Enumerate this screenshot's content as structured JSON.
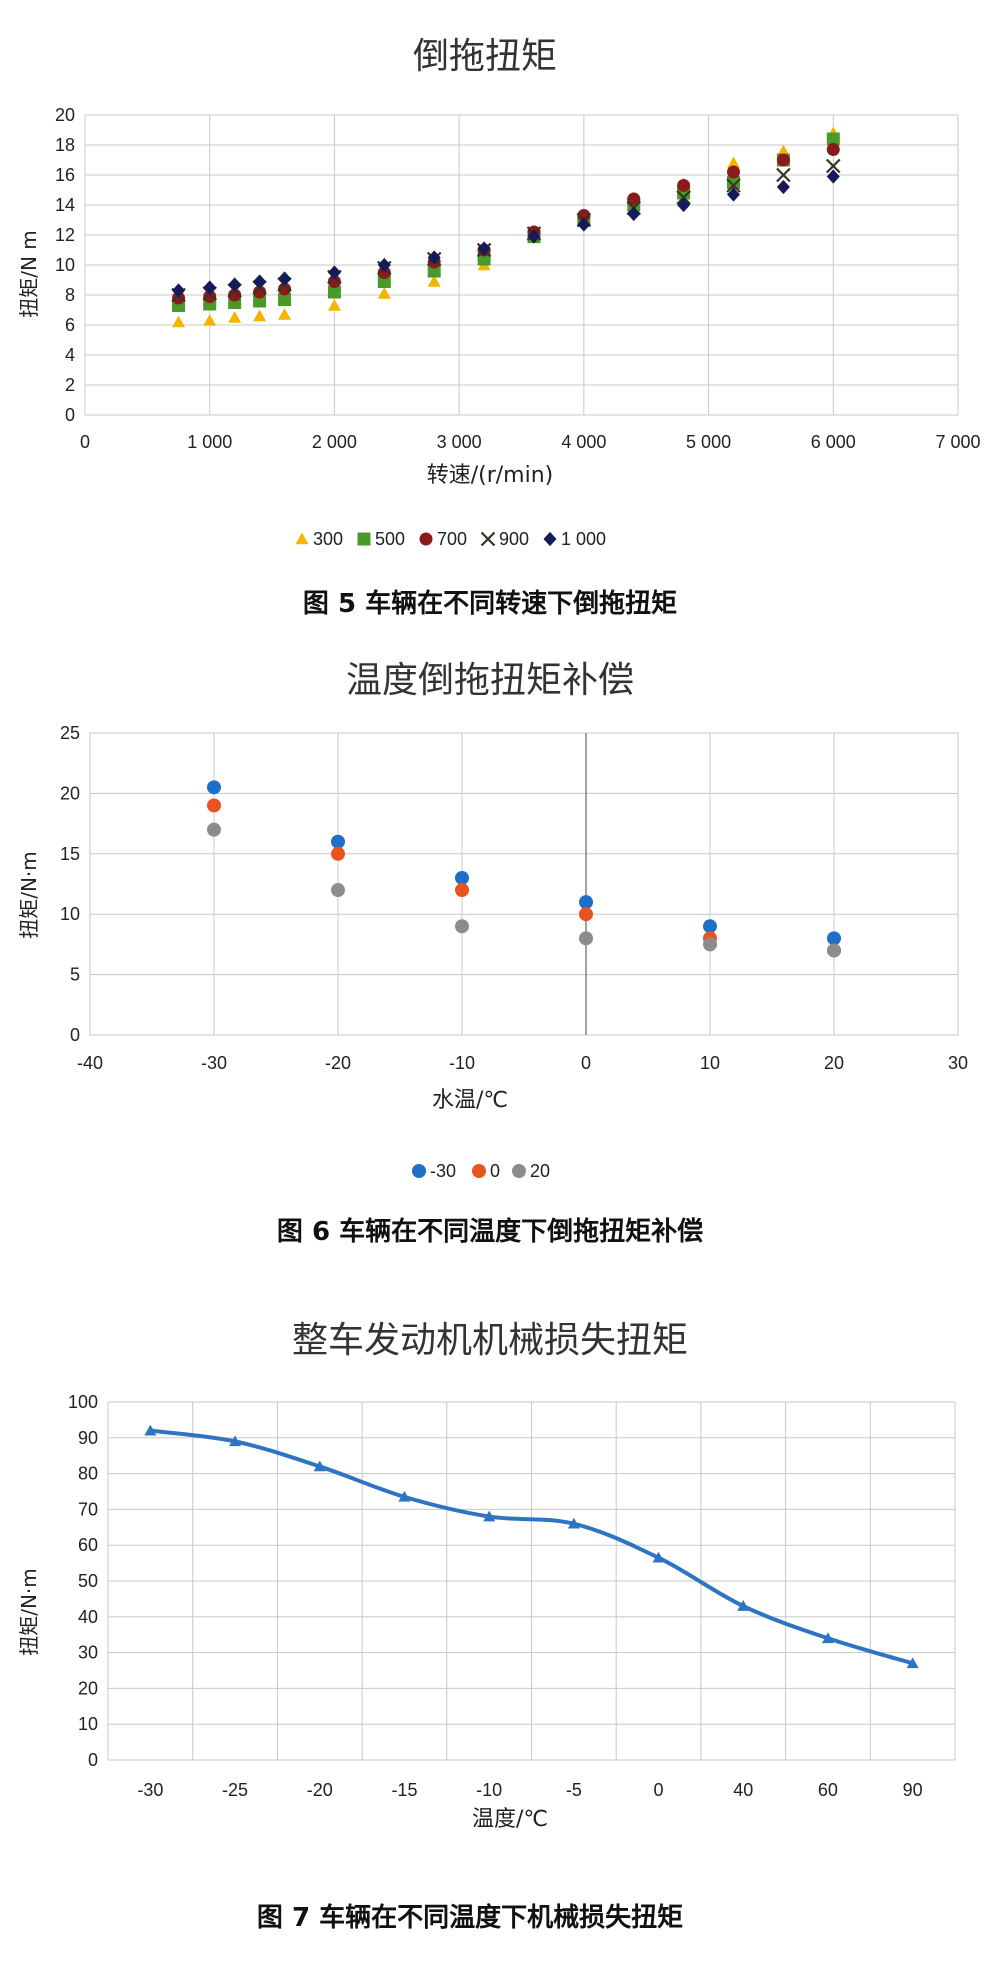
{
  "colors": {
    "s300": "#f5b400",
    "s500": "#4a9a2a",
    "s700": "#8b1a1a",
    "s900": "#3a3226",
    "s1000": "#141a5a",
    "tm30": "#1f6fc8",
    "t0": "#e8531e",
    "t20": "#8c8c8c",
    "line": "#2e74c5",
    "grid": "#c8c8c8"
  },
  "chart_data": [
    {
      "type": "scatter",
      "title": "倒拖扭矩",
      "xlabel": "转速/(r/min)",
      "ylabel": "扭矩/N m",
      "caption": "图 5  车辆在不同转速下倒拖扭矩",
      "xlim": [
        0,
        7000
      ],
      "ylim": [
        0,
        20
      ],
      "xticks": [
        "0",
        "1 000",
        "2 000",
        "3 000",
        "4 000",
        "5 000",
        "6 000",
        "7 000"
      ],
      "yticks": [
        "0",
        "2",
        "4",
        "6",
        "8",
        "10",
        "12",
        "14",
        "16",
        "18",
        "20"
      ],
      "grid": true,
      "legend_position": "bottom",
      "x": [
        750,
        1000,
        1200,
        1400,
        1600,
        2000,
        2400,
        2800,
        3200,
        3600,
        4000,
        4400,
        4800,
        5200,
        5600,
        6000
      ],
      "series": [
        {
          "name": "300",
          "marker": "triangle",
          "values": [
            6.2,
            6.3,
            6.5,
            6.6,
            6.7,
            7.3,
            8.1,
            8.9,
            10.0,
            11.8,
            13.0,
            14.0,
            15.4,
            16.8,
            17.6,
            18.8
          ]
        },
        {
          "name": "500",
          "marker": "square",
          "values": [
            7.3,
            7.4,
            7.5,
            7.6,
            7.7,
            8.2,
            8.9,
            9.6,
            10.4,
            11.9,
            13.0,
            14.0,
            14.8,
            15.5,
            17.0,
            18.4
          ]
        },
        {
          "name": "700",
          "marker": "circle",
          "values": [
            7.8,
            7.9,
            8.0,
            8.2,
            8.4,
            8.9,
            9.5,
            10.2,
            11.0,
            12.2,
            13.3,
            14.4,
            15.3,
            16.2,
            17.0,
            17.7
          ]
        },
        {
          "name": "900",
          "marker": "x",
          "values": [
            8.0,
            8.1,
            8.3,
            8.5,
            8.7,
            9.2,
            9.8,
            10.4,
            11.0,
            12.1,
            13.0,
            13.8,
            14.5,
            15.3,
            16.0,
            16.6
          ]
        },
        {
          "name": "1 000",
          "marker": "diamond",
          "values": [
            8.3,
            8.5,
            8.7,
            8.9,
            9.1,
            9.5,
            10.0,
            10.5,
            11.1,
            11.9,
            12.7,
            13.4,
            14.0,
            14.7,
            15.2,
            15.9
          ]
        }
      ]
    },
    {
      "type": "scatter",
      "title": "温度倒拖扭矩补偿",
      "xlabel": "水温/℃",
      "ylabel": "扭矩/N·m",
      "caption": "图 6  车辆在不同温度下倒拖扭矩补偿",
      "xlim": [
        -40,
        30
      ],
      "ylim": [
        0,
        25
      ],
      "xticks": [
        "-40",
        "-30",
        "-20",
        "-10",
        "0",
        "10",
        "20",
        "30"
      ],
      "yticks": [
        "0",
        "5",
        "10",
        "15",
        "20",
        "25"
      ],
      "grid": true,
      "legend_position": "bottom",
      "x": [
        -30,
        -20,
        -10,
        0,
        10,
        20
      ],
      "series": [
        {
          "name": "-30",
          "marker": "circle",
          "values": [
            20.5,
            16.0,
            13.0,
            11.0,
            9.0,
            8.0
          ]
        },
        {
          "name": "0",
          "marker": "circle",
          "values": [
            19.0,
            15.0,
            12.0,
            10.0,
            8.0,
            7.0
          ]
        },
        {
          "name": "20",
          "marker": "circle",
          "values": [
            17.0,
            12.0,
            9.0,
            8.0,
            7.5,
            7.0
          ]
        }
      ]
    },
    {
      "type": "line",
      "title": "整车发动机机械损失扭矩",
      "xlabel": "温度/℃",
      "ylabel": "扭矩/N·m",
      "caption": "图 7  车辆在不同温度下机械损失扭矩",
      "ylim": [
        0,
        100
      ],
      "yticks": [
        "0",
        "10",
        "20",
        "30",
        "40",
        "50",
        "60",
        "70",
        "80",
        "90",
        "100"
      ],
      "categories": [
        "-30",
        "-25",
        "-20",
        "-15",
        "-10",
        "-5",
        "0",
        "40",
        "60",
        "90"
      ],
      "grid": true,
      "series": [
        {
          "marker": "triangle",
          "values": [
            92,
            89,
            82,
            73.5,
            68,
            66,
            56.5,
            43,
            34,
            27
          ]
        }
      ]
    }
  ]
}
